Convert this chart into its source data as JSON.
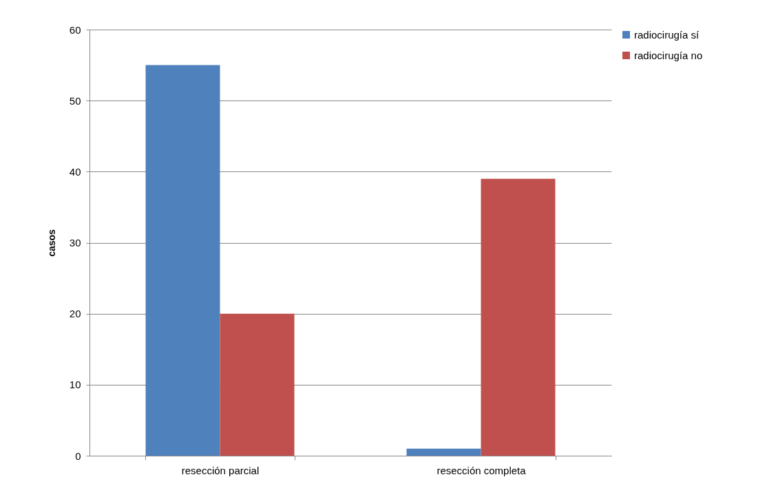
{
  "chart_data": {
    "type": "bar",
    "ylabel": "casos",
    "categories": [
      "resección parcial",
      "resección completa"
    ],
    "series": [
      {
        "name": "radiocirugía sí",
        "color": "#4f81bd",
        "values": [
          55,
          1
        ]
      },
      {
        "name": "radiocirugía no",
        "color": "#c0504d",
        "values": [
          20,
          39
        ]
      }
    ],
    "ylim": [
      0,
      60
    ],
    "yticks": [
      0,
      10,
      20,
      30,
      40,
      50,
      60
    ],
    "grid": "y",
    "legend": "right"
  }
}
